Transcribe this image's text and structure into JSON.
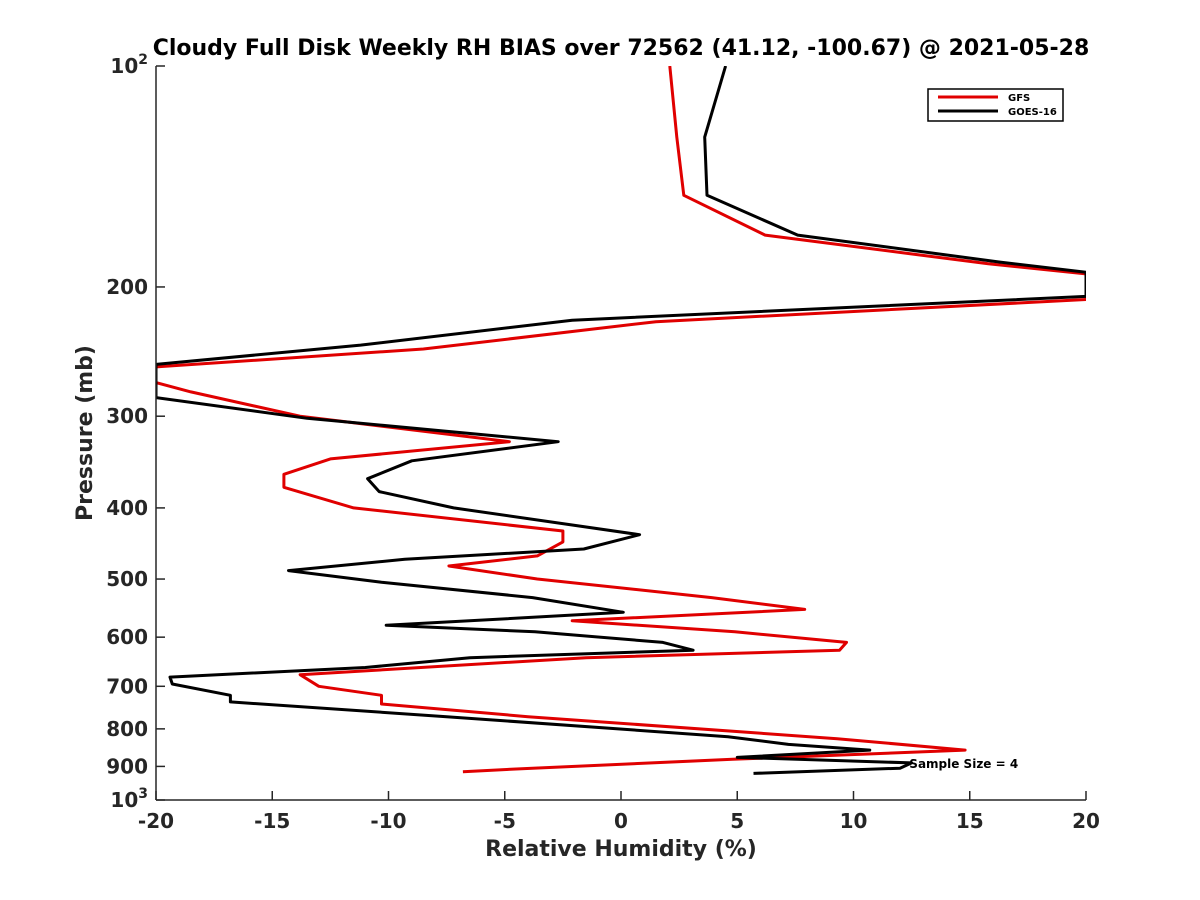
{
  "chart_data": {
    "type": "line",
    "title": "Cloudy Full Disk Weekly RH BIAS over 72562 (41.12, -100.67) @ 2021-05-28",
    "xlabel": "Relative Humidity (%)",
    "ylabel": "Pressure (mb)",
    "xlim": [
      -20,
      20
    ],
    "ylim": [
      100,
      1000
    ],
    "y_scale": "log",
    "y_reversed": true,
    "grid": false,
    "legend_position": "top-right",
    "x_ticks": [
      "-20",
      "-15",
      "-10",
      "-5",
      "0",
      "5",
      "10",
      "15",
      "20"
    ],
    "y_ticks": [
      {
        "value": 100,
        "base": "10",
        "exp": "2"
      },
      {
        "value": 200,
        "label": "200"
      },
      {
        "value": 300,
        "label": "300"
      },
      {
        "value": 400,
        "label": "400"
      },
      {
        "value": 500,
        "label": "500"
      },
      {
        "value": 600,
        "label": "600"
      },
      {
        "value": 700,
        "label": "700"
      },
      {
        "value": 800,
        "label": "800"
      },
      {
        "value": 900,
        "label": "900"
      },
      {
        "value": 1000,
        "base": "10",
        "exp": "3"
      }
    ],
    "annotation": "Sample Size = 4",
    "series": [
      {
        "name": "GFS",
        "color": "#e00000",
        "points": [
          [
            2.1,
            100
          ],
          [
            2.4,
            125
          ],
          [
            2.7,
            150
          ],
          [
            6.2,
            170
          ],
          [
            15.8,
            186
          ],
          [
            20,
            192
          ],
          [
            20,
            208
          ],
          [
            1.5,
            223
          ],
          [
            -8.5,
            243
          ],
          [
            -20,
            257
          ],
          [
            -20,
            270
          ],
          [
            -18.5,
            278
          ],
          [
            -13.8,
            300
          ],
          [
            -4.8,
            325
          ],
          [
            -12.5,
            343
          ],
          [
            -14.5,
            360
          ],
          [
            -14.5,
            375
          ],
          [
            -11.5,
            400
          ],
          [
            -2.5,
            430
          ],
          [
            -2.5,
            445
          ],
          [
            -3.6,
            465
          ],
          [
            -7.4,
            480
          ],
          [
            -3.6,
            500
          ],
          [
            3.9,
            530
          ],
          [
            7.9,
            550
          ],
          [
            -2.1,
            570
          ],
          [
            4.9,
            590
          ],
          [
            9.7,
            610
          ],
          [
            9.4,
            625
          ],
          [
            -1.5,
            640
          ],
          [
            -13.8,
            675
          ],
          [
            -13.0,
            700
          ],
          [
            -10.3,
            720
          ],
          [
            -10.3,
            740
          ],
          [
            -4.0,
            770
          ],
          [
            9.3,
            825
          ],
          [
            14.8,
            855
          ],
          [
            4.8,
            880
          ],
          [
            -3.8,
            905
          ],
          [
            -6.8,
            915
          ]
        ]
      },
      {
        "name": "GOES-16",
        "color": "#000000",
        "points": [
          [
            4.5,
            100
          ],
          [
            3.6,
            125
          ],
          [
            3.7,
            150
          ],
          [
            7.6,
            170
          ],
          [
            16.3,
            185
          ],
          [
            20,
            191
          ],
          [
            20,
            206
          ],
          [
            -2.1,
            222
          ],
          [
            -11.2,
            240
          ],
          [
            -20,
            255
          ],
          [
            -20,
            283
          ],
          [
            -13.5,
            302
          ],
          [
            -2.7,
            325
          ],
          [
            -9.0,
            345
          ],
          [
            -10.9,
            365
          ],
          [
            -10.4,
            380
          ],
          [
            -7.2,
            400
          ],
          [
            0.8,
            435
          ],
          [
            -1.6,
            455
          ],
          [
            -9.3,
            470
          ],
          [
            -14.3,
            487
          ],
          [
            -10.3,
            505
          ],
          [
            -3.8,
            530
          ],
          [
            0.1,
            555
          ],
          [
            -10.1,
            578
          ],
          [
            -3.7,
            590
          ],
          [
            1.8,
            610
          ],
          [
            3.1,
            625
          ],
          [
            -6.5,
            640
          ],
          [
            -11.0,
            660
          ],
          [
            -19.4,
            680
          ],
          [
            -19.3,
            695
          ],
          [
            -16.8,
            720
          ],
          [
            -16.8,
            735
          ],
          [
            -7.5,
            770
          ],
          [
            4.6,
            820
          ],
          [
            7.2,
            840
          ],
          [
            10.7,
            855
          ],
          [
            5.0,
            875
          ],
          [
            12.5,
            890
          ],
          [
            12.0,
            905
          ],
          [
            5.7,
            920
          ]
        ]
      }
    ]
  }
}
